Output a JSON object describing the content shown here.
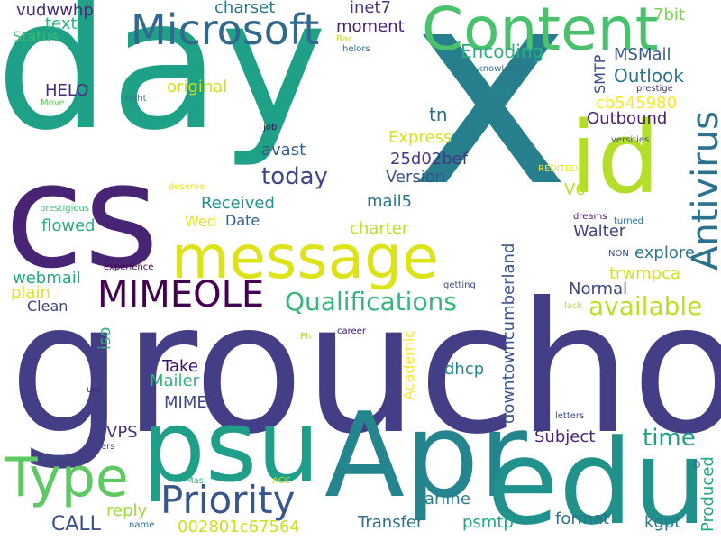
{
  "words": [
    {
      "text": "day",
      "color": "#1fa187"
    },
    {
      "text": "x",
      "color": "#277f8e"
    },
    {
      "text": "groucho",
      "color": "#433e85"
    },
    {
      "text": "cs",
      "color": "#482475"
    },
    {
      "text": "psu",
      "color": "#1f9e89"
    },
    {
      "text": "Apr",
      "color": "#25858e"
    },
    {
      "text": "edu",
      "color": "#21918c"
    },
    {
      "text": "Content",
      "color": "#4ac16d"
    },
    {
      "text": "id",
      "color": "#b5de2b"
    },
    {
      "text": "Microsoft",
      "color": "#31688e"
    },
    {
      "text": "message",
      "color": "#dde318"
    },
    {
      "text": "Antivirus",
      "color": "#2c728e"
    },
    {
      "text": "Type",
      "color": "#5ec962"
    },
    {
      "text": "Priority",
      "color": "#39568c"
    },
    {
      "text": "MIMEOLE",
      "color": "#440154"
    },
    {
      "text": "Qualifications",
      "color": "#35b779"
    },
    {
      "text": "available",
      "color": "#bddf26"
    },
    {
      "text": "today",
      "color": "#404688"
    },
    {
      "text": "time",
      "color": "#1fa187"
    },
    {
      "text": "Outlook",
      "color": "#2a768e"
    },
    {
      "text": "Encoding",
      "color": "#2ab07f"
    },
    {
      "text": "charset",
      "color": "#2a788e"
    },
    {
      "text": "inet7",
      "color": "#46337e"
    },
    {
      "text": "moment",
      "color": "#482173"
    },
    {
      "text": "7bit",
      "color": "#7ad151"
    },
    {
      "text": "vudwwhp",
      "color": "#482878"
    },
    {
      "text": "text",
      "color": "#2db27d"
    },
    {
      "text": "Status",
      "color": "#3bbb75"
    },
    {
      "text": "HELO",
      "color": "#472d7b"
    },
    {
      "text": "original",
      "color": "#cde11d"
    },
    {
      "text": "MSMail",
      "color": "#38588c"
    },
    {
      "text": "SMTP",
      "color": "#3e4989"
    },
    {
      "text": "cb545980",
      "color": "#fde725"
    },
    {
      "text": "Outbound",
      "color": "#481f70"
    },
    {
      "text": "tn",
      "color": "#2e6e8e"
    },
    {
      "text": "Express",
      "color": "#d8e219"
    },
    {
      "text": "avast",
      "color": "#355f8d"
    },
    {
      "text": "25d02bef",
      "color": "#453781"
    },
    {
      "text": "Version",
      "color": "#3b528b"
    },
    {
      "text": "mail5",
      "color": "#2a788e"
    },
    {
      "text": "V6",
      "color": "#bade28"
    },
    {
      "text": "Received",
      "color": "#20928c"
    },
    {
      "text": "flowed",
      "color": "#29af7f"
    },
    {
      "text": "Date",
      "color": "#33628d"
    },
    {
      "text": "Wed",
      "color": "#e5e419"
    },
    {
      "text": "charter",
      "color": "#b8de29"
    },
    {
      "text": "Walter",
      "color": "#414487"
    },
    {
      "text": "explore",
      "color": "#2a788e"
    },
    {
      "text": "trwmpca",
      "color": "#d0e11c"
    },
    {
      "text": "downtowncumberland",
      "color": "#3a548c"
    },
    {
      "text": "webmail",
      "color": "#22a884"
    },
    {
      "text": "plain",
      "color": "#e2e418"
    },
    {
      "text": "Clean",
      "color": "#404387"
    },
    {
      "text": "iso",
      "color": "#32b67a"
    },
    {
      "text": "Normal",
      "color": "#3f4788"
    },
    {
      "text": "Take",
      "color": "#3b0f70"
    },
    {
      "text": "Mailer",
      "color": "#2fb47c"
    },
    {
      "text": "MIME",
      "color": "#3e4a89"
    },
    {
      "text": "dhcp",
      "color": "#25848e"
    },
    {
      "text": "Academic",
      "color": "#fde725"
    },
    {
      "text": "Subject",
      "color": "#482677"
    },
    {
      "text": "VPS",
      "color": "#46337e"
    },
    {
      "text": "reply",
      "color": "#9bd93c"
    },
    {
      "text": "CALL",
      "color": "#3c4f8a"
    },
    {
      "text": "002801c67564",
      "color": "#cae11f"
    },
    {
      "text": "Transfer",
      "color": "#2d708e"
    },
    {
      "text": "arline",
      "color": "#277f8e"
    },
    {
      "text": "psmtp",
      "color": "#20a486"
    },
    {
      "text": "format",
      "color": "#2c728e"
    },
    {
      "text": "kgpt",
      "color": "#29798e"
    },
    {
      "text": "Produced",
      "color": "#22a785"
    },
    {
      "text": "Bac",
      "color": "#c0df25"
    },
    {
      "text": "helors",
      "color": "#2c718e"
    },
    {
      "text": "knowledge",
      "color": "#2c738e"
    },
    {
      "text": "field",
      "color": "#218f8d"
    },
    {
      "text": "prestige",
      "color": "#472c7a"
    },
    {
      "text": "right",
      "color": "#287c8e"
    },
    {
      "text": "Move",
      "color": "#5ec962"
    },
    {
      "text": "job",
      "color": "#450559"
    },
    {
      "text": "versities",
      "color": "#3c4f8a"
    },
    {
      "text": "REDITED",
      "color": "#f1e51d"
    },
    {
      "text": "deserve",
      "color": "#e8e419"
    },
    {
      "text": "prestigious",
      "color": "#3bbb75"
    },
    {
      "text": "dreams",
      "color": "#481769"
    },
    {
      "text": "turned",
      "color": "#2c728e"
    },
    {
      "text": "NON",
      "color": "#3f4889"
    },
    {
      "text": "experience",
      "color": "#440154"
    },
    {
      "text": "getting",
      "color": "#3e4989"
    },
    {
      "text": "lack",
      "color": "#b5de2b"
    },
    {
      "text": "Ph",
      "color": "#a2da37"
    },
    {
      "text": "career",
      "color": "#3b0f70"
    },
    {
      "text": "uni",
      "color": "#482173"
    },
    {
      "text": "letters",
      "color": "#3d4e8a"
    },
    {
      "text": "ahead",
      "color": "#3b528b"
    },
    {
      "text": "ters",
      "color": "#3b518b"
    },
    {
      "text": "Mas",
      "color": "#29af7f"
    },
    {
      "text": "ACC",
      "color": "#bddf26"
    },
    {
      "text": "name",
      "color": "#2d708e"
    },
    {
      "text": "D",
      "color": "#2e6e8e"
    }
  ]
}
